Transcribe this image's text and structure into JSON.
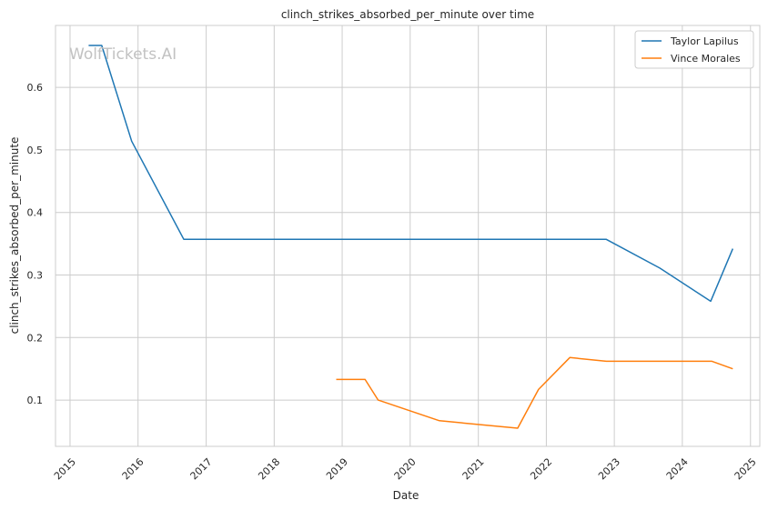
{
  "watermark": "WolfTickets.AI",
  "chart_data": {
    "type": "line",
    "title": "clinch_strikes_absorbed_per_minute over time",
    "xlabel": "Date",
    "ylabel": "clinch_strikes_absorbed_per_minute",
    "x_axis_type": "date",
    "xlim": [
      "2014-10-15",
      "2025-02-20"
    ],
    "ylim": [
      0.026,
      0.699
    ],
    "x_ticks": [
      "2015",
      "2016",
      "2017",
      "2018",
      "2019",
      "2020",
      "2021",
      "2022",
      "2023",
      "2024",
      "2025"
    ],
    "y_ticks": [
      "0.1",
      "0.2",
      "0.3",
      "0.4",
      "0.5",
      "0.6"
    ],
    "grid": true,
    "legend_position": "top-right",
    "series": [
      {
        "name": "Taylor Lapilus",
        "color": "#1f77b4",
        "points": [
          {
            "x": "2015-04-11",
            "y": 0.667
          },
          {
            "x": "2015-06-20",
            "y": 0.667
          },
          {
            "x": "2015-11-28",
            "y": 0.514
          },
          {
            "x": "2016-09-03",
            "y": 0.357
          },
          {
            "x": "2022-11-19",
            "y": 0.357
          },
          {
            "x": "2023-09-02",
            "y": 0.311
          },
          {
            "x": "2024-06-01",
            "y": 0.258
          },
          {
            "x": "2024-09-28",
            "y": 0.342
          }
        ]
      },
      {
        "name": "Vince Morales",
        "color": "#ff7f0e",
        "points": [
          {
            "x": "2018-11-30",
            "y": 0.133
          },
          {
            "x": "2019-05-04",
            "y": 0.133
          },
          {
            "x": "2019-07-13",
            "y": 0.1
          },
          {
            "x": "2020-06-06",
            "y": 0.067
          },
          {
            "x": "2021-07-31",
            "y": 0.055
          },
          {
            "x": "2021-11-20",
            "y": 0.117
          },
          {
            "x": "2022-05-07",
            "y": 0.168
          },
          {
            "x": "2022-11-19",
            "y": 0.162
          },
          {
            "x": "2024-06-08",
            "y": 0.162
          },
          {
            "x": "2024-09-28",
            "y": 0.15
          }
        ]
      }
    ]
  }
}
